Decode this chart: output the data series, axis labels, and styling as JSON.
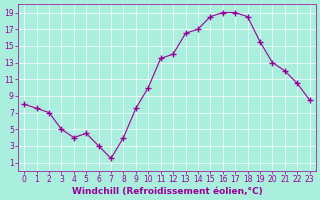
{
  "x": [
    0,
    1,
    2,
    3,
    4,
    5,
    6,
    7,
    8,
    9,
    10,
    11,
    12,
    13,
    14,
    15,
    16,
    17,
    18,
    19,
    20,
    21,
    22,
    23
  ],
  "y": [
    8.0,
    7.5,
    7.0,
    5.0,
    4.0,
    4.5,
    3.0,
    1.5,
    4.0,
    7.5,
    10.0,
    13.5,
    14.0,
    16.5,
    17.0,
    18.5,
    19.0,
    19.0,
    18.5,
    15.5,
    13.0,
    12.0,
    10.5,
    8.5
  ],
  "line_color": "#990099",
  "marker": "P",
  "marker_size": 3,
  "bg_color": "#aaeedd",
  "grid_color": "#ffffff",
  "xlabel": "Windchill (Refroidissement éolien,°C)",
  "xlabel_color": "#990099",
  "tick_color": "#990099",
  "ylim": [
    0,
    20
  ],
  "xlim_min": -0.5,
  "xlim_max": 23.5,
  "yticks": [
    1,
    3,
    5,
    7,
    9,
    11,
    13,
    15,
    17,
    19
  ],
  "xticks": [
    0,
    1,
    2,
    3,
    4,
    5,
    6,
    7,
    8,
    9,
    10,
    11,
    12,
    13,
    14,
    15,
    16,
    17,
    18,
    19,
    20,
    21,
    22,
    23
  ]
}
